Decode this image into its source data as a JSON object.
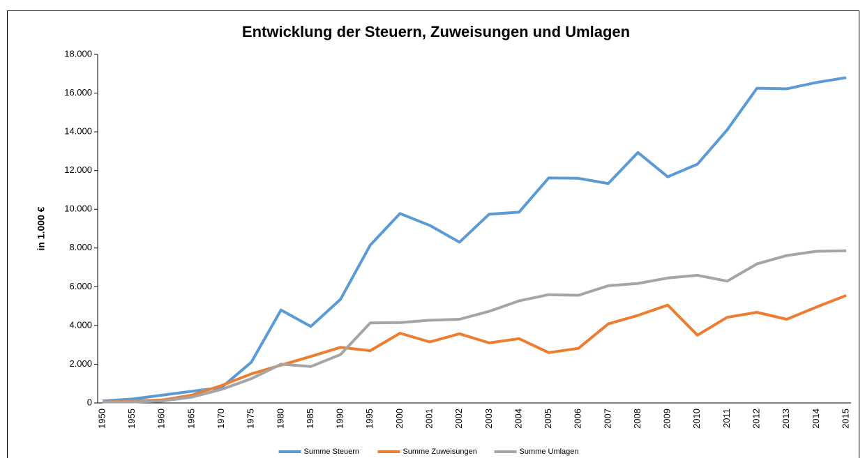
{
  "chart_data": {
    "type": "line",
    "title": "Entwicklung der Steuern, Zuweisungen und Umlagen",
    "y_label": "in 1.000 €",
    "categories": [
      "1950",
      "1955",
      "1960",
      "1965",
      "1970",
      "1975",
      "1980",
      "1985",
      "1990",
      "1995",
      "2000",
      "2001",
      "2002",
      "2003",
      "2004",
      "2005",
      "2006",
      "2007",
      "2008",
      "2009",
      "2010",
      "2011",
      "2012",
      "2013",
      "2014",
      "2015"
    ],
    "series": [
      {
        "name": "Summe Steuern",
        "color": "#5b9bd5",
        "values": [
          100,
          200,
          400,
          600,
          800,
          2100,
          4800,
          3950,
          5350,
          8150,
          9780,
          9170,
          8300,
          9750,
          9850,
          11620,
          11600,
          11330,
          12930,
          11680,
          12330,
          14100,
          16250,
          16220,
          16550,
          16800
        ]
      },
      {
        "name": "Summe Zuweisungen",
        "color": "#ed7d31",
        "values": [
          50,
          100,
          150,
          400,
          900,
          1500,
          1950,
          2400,
          2870,
          2700,
          3600,
          3150,
          3570,
          3100,
          3320,
          2600,
          2820,
          4080,
          4520,
          5050,
          3500,
          4420,
          4680,
          4320,
          4950,
          5550
        ]
      },
      {
        "name": "Summe Umlagen",
        "color": "#a5a5a5",
        "values": [
          50,
          50,
          100,
          300,
          700,
          1250,
          2000,
          1880,
          2500,
          4130,
          4150,
          4270,
          4320,
          4730,
          5270,
          5590,
          5560,
          6050,
          6170,
          6450,
          6590,
          6290,
          7180,
          7610,
          7830,
          7860
        ]
      }
    ],
    "ylim": [
      0,
      18000
    ],
    "yticks": [
      0,
      {
        "value": 2000,
        "label": "2.000"
      },
      {
        "value": 4000,
        "label": "4.000"
      },
      {
        "value": 6000,
        "label": "6.000"
      },
      {
        "value": 8000,
        "label": "8.000"
      },
      {
        "value": 10000,
        "label": "10.000"
      },
      {
        "value": 12000,
        "label": "12.000"
      },
      {
        "value": 14000,
        "label": "14.000"
      },
      {
        "value": 16000,
        "label": "16.000"
      },
      {
        "value": 18000,
        "label": "18.000"
      }
    ],
    "legend": "bottom"
  }
}
